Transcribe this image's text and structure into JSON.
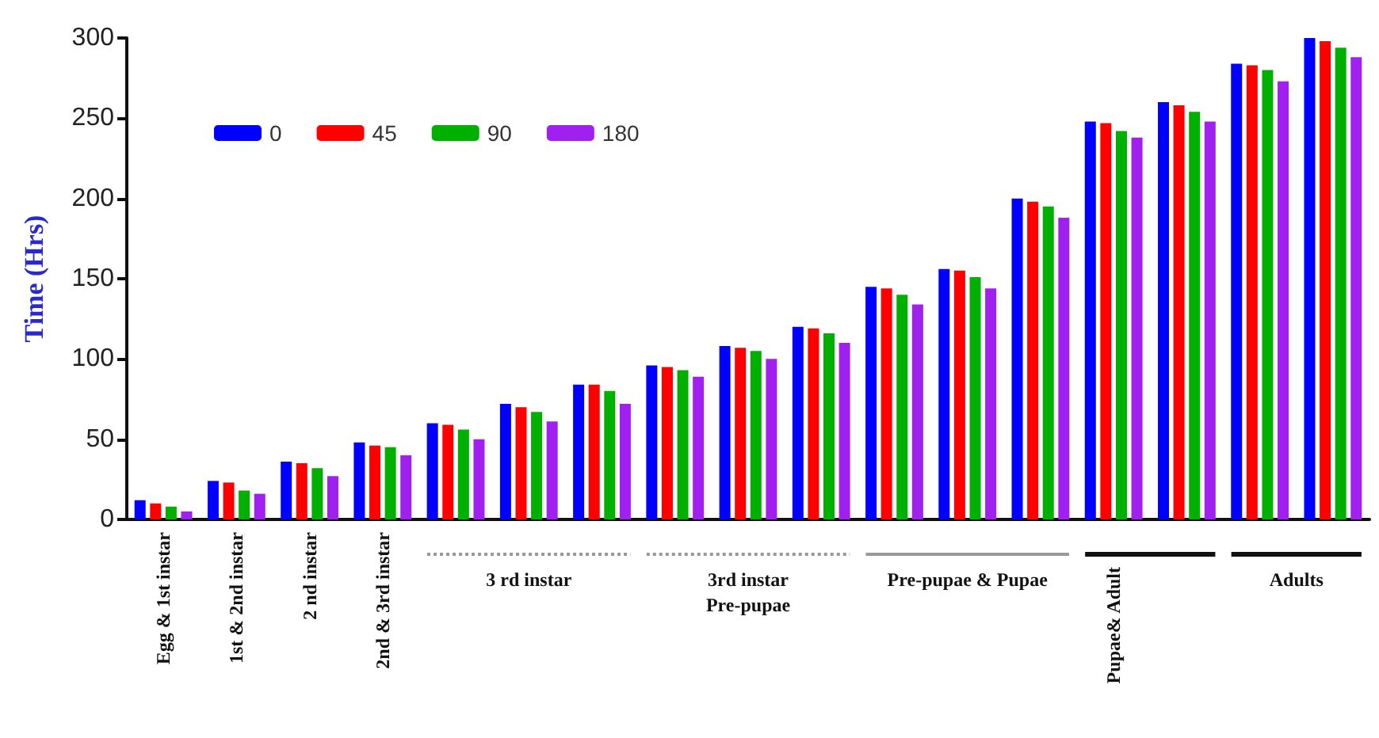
{
  "chart_data": {
    "type": "bar",
    "ylabel": "Time (Hrs)",
    "categories": [
      "Egg & 1st instar",
      "1st & 2nd instar",
      "2 nd instar",
      "2nd & 3rd instar",
      null,
      null,
      null,
      null,
      null,
      null,
      null,
      null,
      null,
      null,
      null,
      null,
      null
    ],
    "annotations": [
      "3 rd instar",
      "3rd instar\nPre-pupae",
      "Pre-pupae & Pupae",
      "Pupae& Adult",
      "Adults"
    ],
    "series": [
      {
        "name": "0",
        "color": "#0000ff",
        "values": [
          12,
          24,
          36,
          48,
          60,
          72,
          84,
          96,
          108,
          120,
          145,
          156,
          200,
          248,
          260,
          284,
          300
        ]
      },
      {
        "name": "45",
        "color": "#ff0000",
        "values": [
          10,
          23,
          35,
          46,
          59,
          70,
          84,
          95,
          107,
          119,
          144,
          155,
          198,
          247,
          258,
          283,
          298
        ]
      },
      {
        "name": "90",
        "color": "#00b000",
        "values": [
          8,
          18,
          32,
          45,
          56,
          67,
          80,
          93,
          105,
          116,
          140,
          151,
          195,
          242,
          254,
          280,
          294
        ]
      },
      {
        "name": "180",
        "color": "#a020f0",
        "values": [
          5,
          16,
          27,
          40,
          50,
          61,
          72,
          89,
          100,
          110,
          134,
          144,
          188,
          238,
          248,
          273,
          288
        ]
      }
    ],
    "ylim": [
      0,
      300
    ],
    "yticks": [
      0,
      50,
      100,
      150,
      200,
      250,
      300
    ],
    "grid": false,
    "legend": "top left"
  }
}
